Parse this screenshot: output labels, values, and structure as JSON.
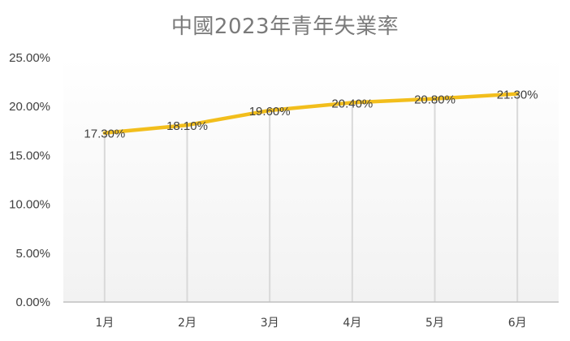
{
  "chart_data": {
    "type": "line",
    "title": "中國2023年青年失業率",
    "xlabel": "",
    "ylabel": "",
    "categories": [
      "1月",
      "2月",
      "3月",
      "4月",
      "5月",
      "6月"
    ],
    "series": [
      {
        "values": [
          17.3,
          18.1,
          19.6,
          20.4,
          20.8,
          21.3
        ],
        "data_labels": [
          "17.30%",
          "18.10%",
          "19.60%",
          "20.40%",
          "20.80%",
          "21.30%"
        ],
        "color": "#F2BE1C"
      }
    ],
    "ylim": [
      0,
      25
    ],
    "yticks": [
      0,
      5,
      10,
      15,
      20,
      25
    ],
    "ytick_labels": [
      "0.00%",
      "5.00%",
      "10.00%",
      "15.00%",
      "20.00%",
      "25.00%"
    ],
    "grid": false,
    "drop_lines": true,
    "legend": "none",
    "colors": {
      "line": "#F2BE1C",
      "title": "#7a7a7a",
      "drop_line": "#d9d9d9",
      "axis": "#bfbfbf",
      "gradient_bottom": "#f2f2f2"
    }
  }
}
